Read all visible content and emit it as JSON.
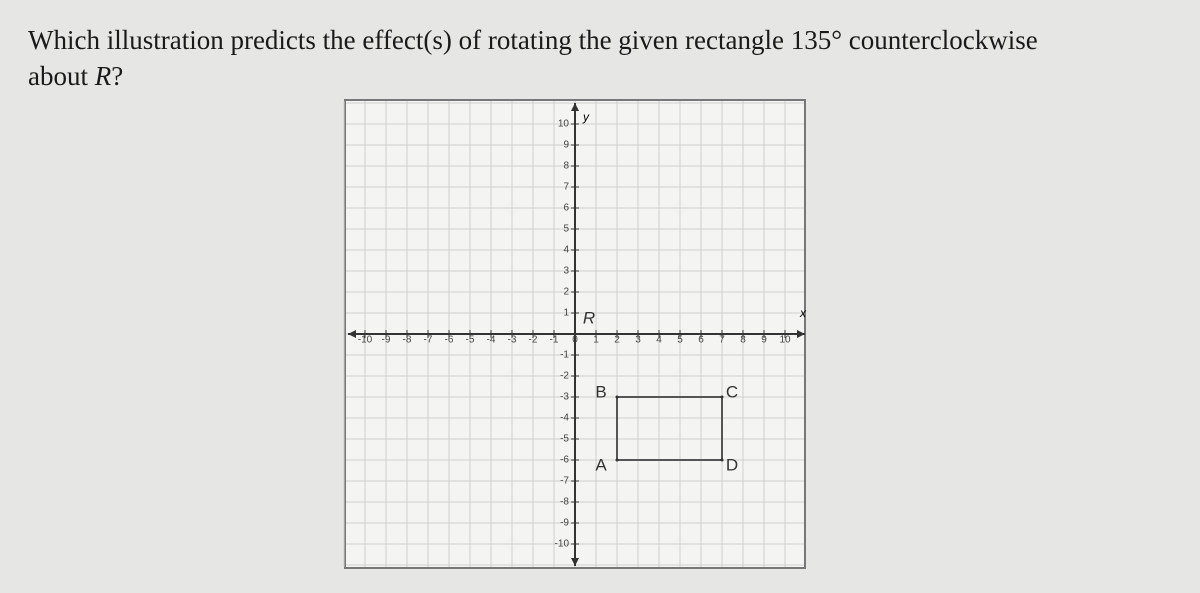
{
  "question": {
    "lines": [
      "Which illustration predicts the effect(s) of rotating the given rectangle 135° counterclockwise",
      "about ",
      "R",
      "?"
    ]
  },
  "graph": {
    "x_axis_label": "x",
    "y_axis_label": "y",
    "xticks": [
      -10,
      -9,
      -8,
      -7,
      -6,
      -5,
      -4,
      -3,
      -2,
      -1,
      0,
      1,
      2,
      3,
      4,
      5,
      6,
      7,
      8,
      9,
      10
    ],
    "yticks": [
      -10,
      -9,
      -8,
      -7,
      -6,
      -5,
      -4,
      -3,
      -2,
      -1,
      1,
      2,
      3,
      4,
      5,
      6,
      7,
      8,
      9,
      10
    ],
    "points": [
      {
        "label": "R",
        "x": 0,
        "y": 0
      },
      {
        "label": "B",
        "x": 2,
        "y": -3
      },
      {
        "label": "C",
        "x": 7,
        "y": -3
      },
      {
        "label": "D",
        "x": 7,
        "y": -6
      },
      {
        "label": "A",
        "x": 2,
        "y": -6
      }
    ]
  }
}
